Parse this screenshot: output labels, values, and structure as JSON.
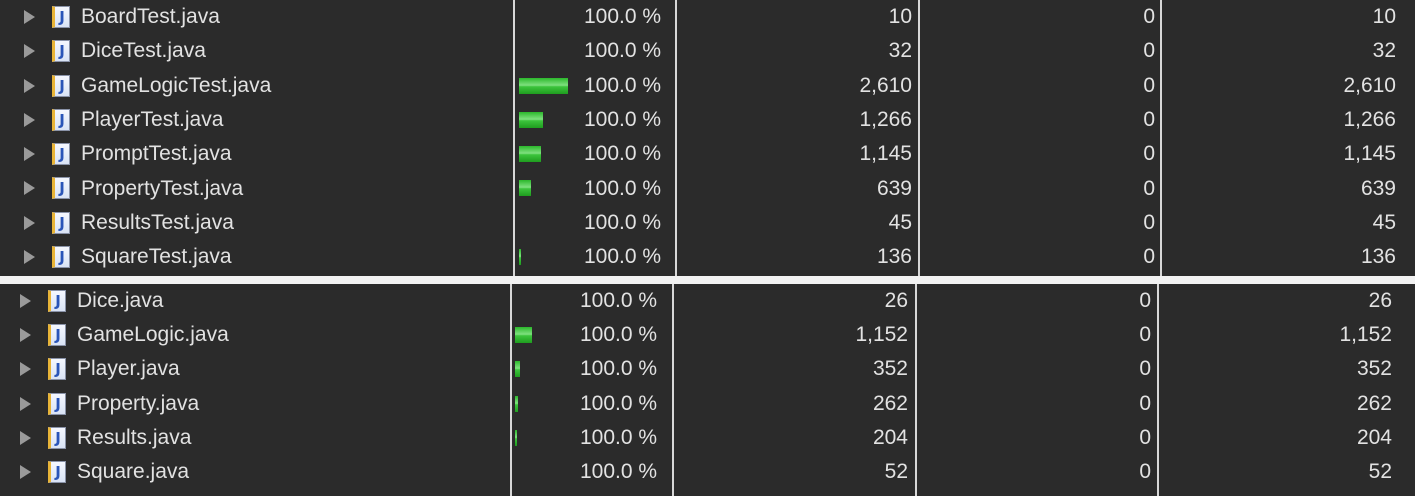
{
  "test_files": [
    {
      "name": "BoardTest.java",
      "coverage": "100.0 %",
      "covered": "10",
      "missed": "0",
      "total": "10",
      "bar_fraction": 0.0
    },
    {
      "name": "DiceTest.java",
      "coverage": "100.0 %",
      "covered": "32",
      "missed": "0",
      "total": "32",
      "bar_fraction": 0.0
    },
    {
      "name": "GameLogicTest.java",
      "coverage": "100.0 %",
      "covered": "2,610",
      "missed": "0",
      "total": "2,610",
      "bar_fraction": 1.0
    },
    {
      "name": "PlayerTest.java",
      "coverage": "100.0 %",
      "covered": "1,266",
      "missed": "0",
      "total": "1,266",
      "bar_fraction": 0.485
    },
    {
      "name": "PromptTest.java",
      "coverage": "100.0 %",
      "covered": "1,145",
      "missed": "0",
      "total": "1,145",
      "bar_fraction": 0.439
    },
    {
      "name": "PropertyTest.java",
      "coverage": "100.0 %",
      "covered": "639",
      "missed": "0",
      "total": "639",
      "bar_fraction": 0.245
    },
    {
      "name": "ResultsTest.java",
      "coverage": "100.0 %",
      "covered": "45",
      "missed": "0",
      "total": "45",
      "bar_fraction": 0.0
    },
    {
      "name": "SquareTest.java",
      "coverage": "100.0 %",
      "covered": "136",
      "missed": "0",
      "total": "136",
      "bar_fraction": 0.05
    }
  ],
  "source_files": [
    {
      "name": "Dice.java",
      "coverage": "100.0 %",
      "covered": "26",
      "missed": "0",
      "total": "26",
      "bar_fraction": 0.0
    },
    {
      "name": "GameLogic.java",
      "coverage": "100.0 %",
      "covered": "1,152",
      "missed": "0",
      "total": "1,152",
      "bar_fraction": 0.34
    },
    {
      "name": "Player.java",
      "coverage": "100.0 %",
      "covered": "352",
      "missed": "0",
      "total": "352",
      "bar_fraction": 0.1
    },
    {
      "name": "Property.java",
      "coverage": "100.0 %",
      "covered": "262",
      "missed": "0",
      "total": "262",
      "bar_fraction": 0.06
    },
    {
      "name": "Results.java",
      "coverage": "100.0 %",
      "covered": "204",
      "missed": "0",
      "total": "204",
      "bar_fraction": 0.05
    },
    {
      "name": "Square.java",
      "coverage": "100.0 %",
      "covered": "52",
      "missed": "0",
      "total": "52",
      "bar_fraction": 0.0
    }
  ],
  "icons": {
    "file": "java-file-icon",
    "expand": "expand-triangle-icon"
  },
  "colors": {
    "bar": "#3cc43c",
    "background": "#2b2b2b",
    "text": "#e2e2e2"
  }
}
